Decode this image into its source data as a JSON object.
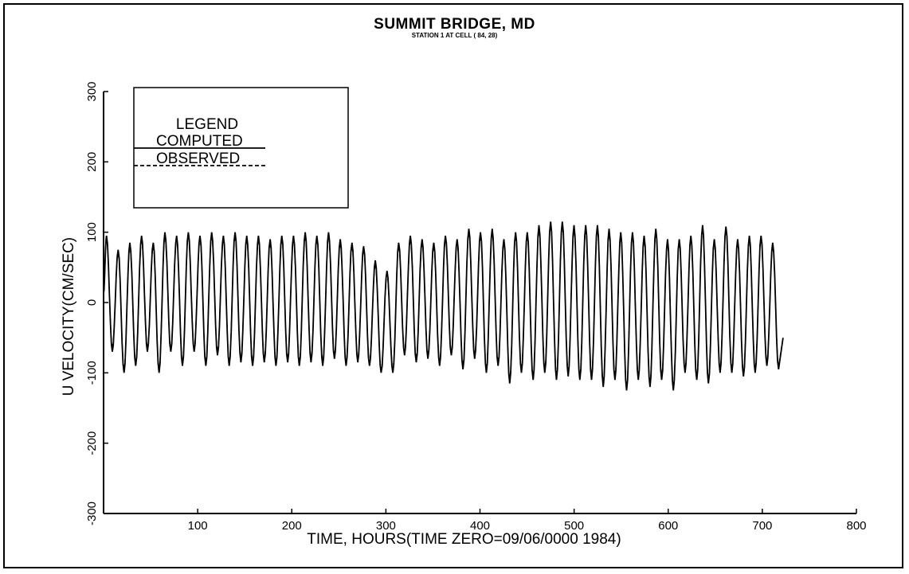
{
  "chart_data": {
    "type": "line",
    "title": "SUMMIT BRIDGE, MD",
    "subtitle": "STATION 1 AT CELL ( 84, 28)",
    "xlabel": "TIME, HOURS(TIME ZERO=09/06/0000 1984)",
    "ylabel": "U VELOCITY(CM/SEC)",
    "xlim": [
      0,
      800
    ],
    "ylim": [
      -300,
      300
    ],
    "x_ticks": [
      100,
      200,
      300,
      400,
      500,
      600,
      700,
      800
    ],
    "y_ticks": [
      -300,
      -200,
      -100,
      0,
      100,
      200,
      300
    ],
    "grid": false,
    "legend": {
      "title": "LEGEND",
      "placement": "top-left",
      "entries": [
        {
          "label": "COMPUTED",
          "style": "solid"
        },
        {
          "label": "OBSERVED",
          "style": "dashed"
        }
      ]
    },
    "time_step_hours": 12.42,
    "x_start": 0,
    "x_end": 722,
    "series": [
      {
        "name": "COMPUTED",
        "style": "solid",
        "peaks": [
          95,
          75,
          85,
          95,
          85,
          100,
          95,
          100,
          95,
          100,
          95,
          100,
          95,
          95,
          90,
          95,
          95,
          100,
          95,
          100,
          90,
          85,
          80,
          60,
          45,
          85,
          95,
          90,
          85,
          95,
          90,
          105,
          100,
          105,
          90,
          100,
          100,
          110,
          115,
          115,
          110,
          110,
          110,
          105,
          100,
          100,
          95,
          105,
          90,
          90,
          95,
          110,
          90,
          108,
          90,
          95,
          95,
          85
        ],
        "troughs": [
          -70,
          -100,
          -90,
          -70,
          -100,
          -70,
          -90,
          -70,
          -90,
          -75,
          -90,
          -85,
          -90,
          -85,
          -90,
          -85,
          -90,
          -85,
          -90,
          -80,
          -90,
          -85,
          -90,
          -100,
          -100,
          -75,
          -85,
          -80,
          -90,
          -75,
          -95,
          -80,
          -100,
          -90,
          -115,
          -100,
          -110,
          -100,
          -110,
          -105,
          -110,
          -110,
          -120,
          -110,
          -125,
          -110,
          -120,
          -110,
          -125,
          -100,
          -110,
          -115,
          -100,
          -100,
          -105,
          -100,
          -90,
          -95
        ]
      },
      {
        "name": "OBSERVED",
        "style": "dashed",
        "peaks": [
          90,
          70,
          80,
          90,
          80,
          95,
          90,
          95,
          90,
          95,
          90,
          95,
          90,
          90,
          85,
          90,
          90,
          95,
          90,
          95,
          85,
          80,
          75,
          55,
          40,
          80,
          90,
          85,
          80,
          90,
          85,
          100,
          95,
          100,
          85,
          95,
          95,
          105,
          110,
          110,
          105,
          105,
          105,
          100,
          95,
          95,
          90,
          100,
          85,
          85,
          90,
          105,
          85,
          103,
          85,
          90,
          90,
          80
        ],
        "troughs": [
          -65,
          -95,
          -85,
          -65,
          -95,
          -65,
          -85,
          -65,
          -85,
          -70,
          -85,
          -80,
          -85,
          -80,
          -85,
          -80,
          -85,
          -80,
          -85,
          -75,
          -85,
          -80,
          -85,
          -95,
          -95,
          -70,
          -80,
          -75,
          -85,
          -70,
          -90,
          -75,
          -95,
          -85,
          -110,
          -95,
          -105,
          -95,
          -105,
          -100,
          -105,
          -105,
          -115,
          -105,
          -120,
          -105,
          -115,
          -105,
          -120,
          -95,
          -105,
          -110,
          -95,
          -95,
          -100,
          -95,
          -85,
          -90
        ]
      }
    ]
  }
}
